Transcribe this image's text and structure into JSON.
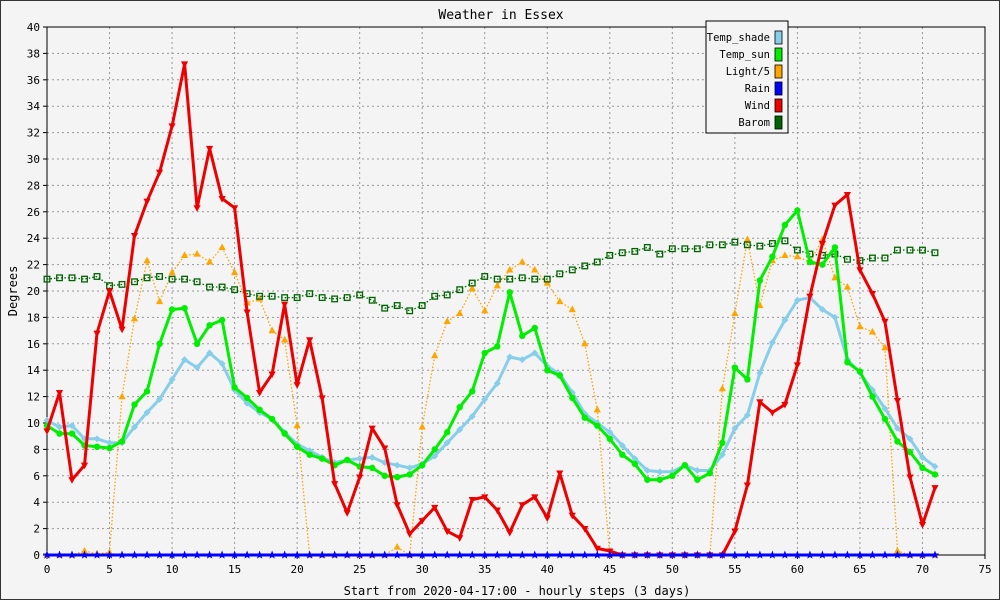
{
  "chart_data": {
    "type": "line",
    "title": "Weather in Essex",
    "xlabel": "Start from 2020-04-17:00 - hourly steps (3 days)",
    "ylabel": "Degrees",
    "xlim": [
      0,
      75
    ],
    "ylim": [
      0,
      40
    ],
    "xticks": [
      0,
      5,
      10,
      15,
      20,
      25,
      30,
      35,
      40,
      45,
      50,
      55,
      60,
      65,
      70,
      75
    ],
    "yticks": [
      0,
      2,
      4,
      6,
      8,
      10,
      12,
      14,
      16,
      18,
      20,
      22,
      24,
      26,
      28,
      30,
      32,
      34,
      36,
      38,
      40
    ],
    "grid": true,
    "legend_position": "top-right",
    "series": [
      {
        "name": "Temp_shade",
        "color": "#87ceeb",
        "marker": "diamond",
        "style": "solid",
        "values": [
          10.2,
          9.7,
          9.8,
          8.8,
          8.8,
          8.5,
          8.5,
          9.7,
          10.8,
          11.8,
          13.3,
          14.8,
          14.2,
          15.3,
          14.5,
          12.5,
          11.5,
          10.8,
          10.3,
          9.3,
          8.4,
          7.9,
          7.4,
          7.0,
          7.2,
          7.3,
          7.4,
          7.0,
          6.8,
          6.6,
          6.9,
          7.5,
          8.5,
          9.5,
          10.5,
          11.8,
          13.0,
          15.0,
          14.8,
          15.3,
          14.3,
          13.7,
          12.3,
          10.7,
          10.0,
          9.3,
          8.3,
          7.3,
          6.4,
          6.3,
          6.3,
          6.8,
          6.4,
          6.4,
          7.6,
          9.6,
          10.6,
          13.8,
          16.1,
          17.8,
          19.3,
          19.5,
          18.6,
          18.0,
          14.8,
          13.8,
          12.5,
          11.1,
          9.6,
          8.8,
          7.4,
          6.7
        ]
      },
      {
        "name": "Temp_sun",
        "color": "#00ee00",
        "marker": "circle",
        "style": "solid",
        "values": [
          9.8,
          9.2,
          9.2,
          8.3,
          8.2,
          8.1,
          8.6,
          11.4,
          12.4,
          16.0,
          18.6,
          18.7,
          16.0,
          17.4,
          17.8,
          12.7,
          11.9,
          11.0,
          10.3,
          9.2,
          8.2,
          7.6,
          7.3,
          6.8,
          7.2,
          6.7,
          6.6,
          6.0,
          5.9,
          6.1,
          6.8,
          8.0,
          9.3,
          11.2,
          12.4,
          15.3,
          15.8,
          19.9,
          16.6,
          17.2,
          14.0,
          13.6,
          11.9,
          10.4,
          9.8,
          8.8,
          7.6,
          6.9,
          5.7,
          5.7,
          6.0,
          6.8,
          5.7,
          6.2,
          8.5,
          14.2,
          13.3,
          20.8,
          22.6,
          25.0,
          26.1,
          22.2,
          22.0,
          23.3,
          14.6,
          13.9,
          12.0,
          10.3,
          8.6,
          7.8,
          6.6,
          6.1
        ]
      },
      {
        "name": "Light/5",
        "color": "#ffa500",
        "marker": "triangle-up",
        "style": "dotted",
        "values": [
          0,
          0,
          0,
          0.3,
          0.1,
          0.2,
          12.0,
          17.9,
          22.3,
          19.2,
          21.4,
          22.7,
          22.8,
          22.2,
          23.3,
          21.4,
          19.1,
          19.4,
          17.0,
          16.3,
          9.8,
          0,
          0,
          0,
          0,
          0,
          0,
          0,
          0.6,
          0,
          9.7,
          15.1,
          17.7,
          18.3,
          20.2,
          18.5,
          20.4,
          21.6,
          22.2,
          21.6,
          20.6,
          19.2,
          18.6,
          16.0,
          11.0,
          0,
          0,
          0,
          0,
          0,
          0,
          0,
          0,
          0,
          12.6,
          18.3,
          23.9,
          18.9,
          22.3,
          22.7,
          22.6,
          22.2,
          23.9,
          21.0,
          20.3,
          17.3,
          16.9,
          15.7,
          0.3,
          0,
          0,
          0
        ]
      },
      {
        "name": "Rain",
        "color": "#0000ff",
        "marker": "star",
        "style": "solid",
        "values": [
          0,
          0,
          0,
          0,
          0,
          0,
          0,
          0,
          0,
          0,
          0,
          0,
          0,
          0,
          0,
          0,
          0,
          0,
          0,
          0,
          0,
          0,
          0,
          0,
          0,
          0,
          0,
          0,
          0,
          0,
          0,
          0,
          0,
          0,
          0,
          0,
          0,
          0,
          0,
          0,
          0,
          0,
          0,
          0,
          0,
          0,
          0,
          0,
          0,
          0,
          0,
          0,
          0,
          0,
          0,
          0,
          0,
          0,
          0,
          0,
          0,
          0,
          0,
          0,
          0,
          0,
          0,
          0,
          0,
          0,
          0,
          0
        ]
      },
      {
        "name": "Wind",
        "color": "#ee0000",
        "marker": "triangle-down",
        "style": "solid",
        "values": [
          9.4,
          12.3,
          5.7,
          6.8,
          16.8,
          20.0,
          17.1,
          24.2,
          26.8,
          29.0,
          32.5,
          37.2,
          26.3,
          30.8,
          27.0,
          26.3,
          18.4,
          12.3,
          13.7,
          19.0,
          12.9,
          16.3,
          11.9,
          5.4,
          3.2,
          5.9,
          9.6,
          8.1,
          3.8,
          1.6,
          2.6,
          3.6,
          1.8,
          1.3,
          4.2,
          4.4,
          3.4,
          1.7,
          3.8,
          4.4,
          2.8,
          6.2,
          3.0,
          2.0,
          0.5,
          0.3,
          0,
          0,
          0,
          0,
          0,
          0,
          0,
          0,
          0,
          1.8,
          5.3,
          11.6,
          10.8,
          11.4,
          14.4,
          19.6,
          23.6,
          26.5,
          27.3,
          21.6,
          19.8,
          17.7,
          11.7,
          5.9,
          2.3,
          5.1
        ]
      },
      {
        "name": "Barom",
        "color": "#006400",
        "marker": "square",
        "style": "dotted",
        "values": [
          20.9,
          21.0,
          21.0,
          20.9,
          21.1,
          20.4,
          20.5,
          20.7,
          21.0,
          21.1,
          20.9,
          20.9,
          20.7,
          20.3,
          20.3,
          20.1,
          19.8,
          19.6,
          19.6,
          19.5,
          19.5,
          19.8,
          19.5,
          19.4,
          19.5,
          19.7,
          19.3,
          18.7,
          18.9,
          18.5,
          18.9,
          19.6,
          19.7,
          20.1,
          20.6,
          21.1,
          20.9,
          20.9,
          21.0,
          20.9,
          20.9,
          21.3,
          21.6,
          21.9,
          22.2,
          22.7,
          22.9,
          23.0,
          23.3,
          22.8,
          23.2,
          23.2,
          23.2,
          23.5,
          23.5,
          23.7,
          23.5,
          23.4,
          23.6,
          23.8,
          23.1,
          22.8,
          22.7,
          22.8,
          22.4,
          22.3,
          22.5,
          22.5,
          23.1,
          23.1,
          23.1,
          22.9
        ]
      }
    ]
  }
}
